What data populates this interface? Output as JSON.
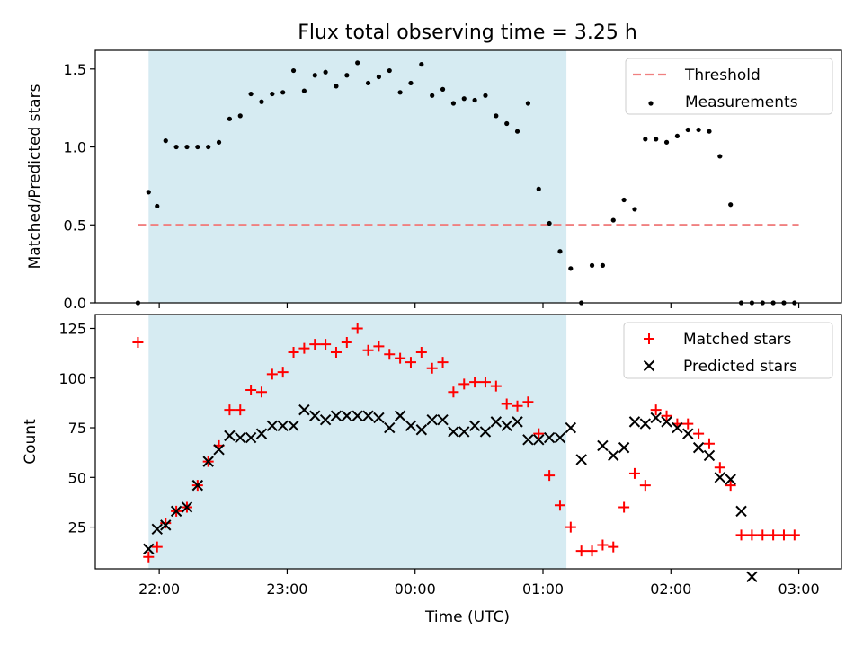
{
  "title": "Flux total observing time = 3.25 h",
  "xlabel": "Time (UTC)",
  "x_ticks": [
    "22:00",
    "23:00",
    "00:00",
    "01:00",
    "02:00",
    "03:00"
  ],
  "chart_data": [
    {
      "type": "scatter",
      "ylabel": "Matched/Predicted stars",
      "ylim": [
        0,
        1.62
      ],
      "y_ticks": [
        "0.0",
        "0.5",
        "1.0",
        "1.5"
      ],
      "legend_placement": "top-right",
      "shaded_region": {
        "start": "21:55",
        "end": "01:11",
        "color": "#add8e6"
      },
      "threshold": {
        "name": "Threshold",
        "value": 0.5,
        "color": "#f08080",
        "x_range": [
          "21:50",
          "03:00"
        ]
      },
      "series": [
        {
          "name": "Measurements",
          "color": "#000000",
          "x": [
            "21:50",
            "21:55",
            "21:59",
            "22:03",
            "22:08",
            "22:13",
            "22:18",
            "22:23",
            "22:28",
            "22:33",
            "22:38",
            "22:43",
            "22:48",
            "22:53",
            "22:58",
            "23:03",
            "23:08",
            "23:13",
            "23:18",
            "23:23",
            "23:28",
            "23:33",
            "23:38",
            "23:43",
            "23:48",
            "23:53",
            "23:58",
            "00:03",
            "00:08",
            "00:13",
            "00:18",
            "00:23",
            "00:28",
            "00:33",
            "00:38",
            "00:43",
            "00:48",
            "00:53",
            "00:58",
            "01:03",
            "01:08",
            "01:13",
            "01:18",
            "01:23",
            "01:28",
            "01:33",
            "01:38",
            "01:43",
            "01:48",
            "01:53",
            "01:58",
            "02:03",
            "02:08",
            "02:13",
            "02:18",
            "02:23",
            "02:28",
            "02:33",
            "02:38",
            "02:43",
            "02:48",
            "02:53",
            "02:58"
          ],
          "y": [
            0.0,
            0.71,
            0.62,
            1.04,
            1.0,
            1.0,
            1.0,
            1.0,
            1.03,
            1.18,
            1.2,
            1.34,
            1.29,
            1.34,
            1.35,
            1.49,
            1.36,
            1.46,
            1.48,
            1.39,
            1.46,
            1.54,
            1.41,
            1.45,
            1.49,
            1.35,
            1.41,
            1.53,
            1.33,
            1.37,
            1.28,
            1.31,
            1.3,
            1.33,
            1.2,
            1.15,
            1.1,
            1.28,
            0.73,
            0.51,
            0.33,
            0.22,
            0.0,
            0.24,
            0.24,
            0.53,
            0.66,
            0.6,
            1.05,
            1.05,
            1.03,
            1.07,
            1.11,
            1.11,
            1.1,
            0.94,
            0.63,
            0.0,
            0.0,
            0.0,
            0.0,
            0.0,
            0.0
          ]
        }
      ]
    },
    {
      "type": "scatter",
      "ylabel": "Count",
      "ylim": [
        4,
        132
      ],
      "y_ticks": [
        "25",
        "50",
        "75",
        "100",
        "125"
      ],
      "legend_placement": "top-right",
      "shaded_region": {
        "start": "21:55",
        "end": "01:11",
        "color": "#add8e6"
      },
      "series": [
        {
          "name": "Matched stars",
          "marker": "plus",
          "color": "#ff0000",
          "x": [
            "21:50",
            "21:55",
            "21:59",
            "22:03",
            "22:08",
            "22:13",
            "22:18",
            "22:23",
            "22:28",
            "22:33",
            "22:38",
            "22:43",
            "22:48",
            "22:53",
            "22:58",
            "23:03",
            "23:08",
            "23:13",
            "23:18",
            "23:23",
            "23:28",
            "23:33",
            "23:38",
            "23:43",
            "23:48",
            "23:53",
            "23:58",
            "00:03",
            "00:08",
            "00:13",
            "00:18",
            "00:23",
            "00:28",
            "00:33",
            "00:38",
            "00:43",
            "00:48",
            "00:53",
            "00:58",
            "01:03",
            "01:08",
            "01:13",
            "01:18",
            "01:23",
            "01:28",
            "01:33",
            "01:38",
            "01:43",
            "01:48",
            "01:53",
            "01:58",
            "02:03",
            "02:08",
            "02:13",
            "02:18",
            "02:23",
            "02:28",
            "02:33",
            "02:38",
            "02:43",
            "02:48",
            "02:53",
            "02:58"
          ],
          "y": [
            118,
            10,
            15,
            27,
            33,
            35,
            46,
            58,
            66,
            84,
            84,
            94,
            93,
            102,
            103,
            113,
            115,
            117,
            117,
            113,
            118,
            125,
            114,
            116,
            112,
            110,
            108,
            113,
            105,
            108,
            93,
            97,
            98,
            98,
            96,
            87,
            86,
            88,
            72,
            51,
            36,
            25,
            13,
            13,
            16,
            15,
            35,
            52,
            46,
            84,
            81,
            77,
            77,
            72,
            67,
            55,
            46,
            21,
            21,
            21,
            21,
            21,
            21
          ]
        },
        {
          "name": "Predicted stars",
          "marker": "x",
          "color": "#000000",
          "x": [
            "21:55",
            "21:59",
            "22:03",
            "22:08",
            "22:13",
            "22:18",
            "22:23",
            "22:28",
            "22:33",
            "22:38",
            "22:43",
            "22:48",
            "22:53",
            "22:58",
            "23:03",
            "23:08",
            "23:13",
            "23:18",
            "23:23",
            "23:28",
            "23:33",
            "23:38",
            "23:43",
            "23:48",
            "23:53",
            "23:58",
            "00:03",
            "00:08",
            "00:13",
            "00:18",
            "00:23",
            "00:28",
            "00:33",
            "00:38",
            "00:43",
            "00:48",
            "00:53",
            "00:58",
            "01:03",
            "01:08",
            "01:13",
            "01:18",
            "01:28",
            "01:33",
            "01:38",
            "01:43",
            "01:48",
            "01:53",
            "01:58",
            "02:03",
            "02:08",
            "02:13",
            "02:18",
            "02:23",
            "02:28",
            "02:33",
            "02:38"
          ],
          "y": [
            14,
            24,
            26,
            33,
            35,
            46,
            58,
            64,
            71,
            70,
            70,
            72,
            76,
            76,
            76,
            84,
            81,
            79,
            81,
            81,
            81,
            81,
            80,
            75,
            81,
            76,
            74,
            79,
            79,
            73,
            73,
            76,
            73,
            78,
            76,
            78,
            69,
            69,
            70,
            70,
            75,
            59,
            66,
            61,
            65,
            78,
            77,
            80,
            78,
            75,
            72,
            65,
            61,
            50,
            49,
            33,
            0
          ]
        }
      ]
    }
  ]
}
